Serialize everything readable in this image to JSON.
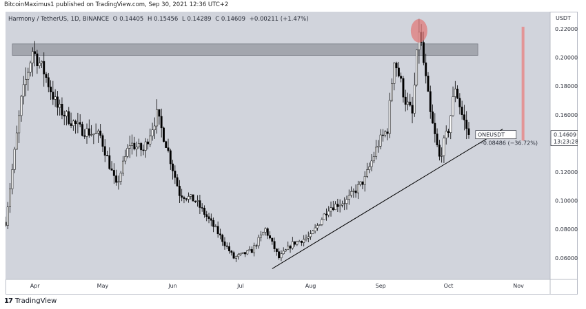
{
  "header": {
    "publisher": "BitcoinMaximus1 published on TradingView.com, Sep 30, 2021 12:36 UTC+2"
  },
  "legend": {
    "symbol": "Harmony / TetherUS, 1D, BINANCE",
    "open": "O 0.14405",
    "high": "H 0.15456",
    "low": "L 0.14289",
    "close": "C 0.14609",
    "change": "+0.00211 (+1.47%)"
  },
  "footer": {
    "logo_glyph": "17",
    "brand": "TradingView"
  },
  "colors": {
    "background": "#d1d4dc",
    "candle_up": "#ffffff",
    "candle_down": "#000000",
    "zone": "#a3a6ae",
    "highlight": "#e07b7b",
    "bar_right": "#e48e8e"
  },
  "chart_data": {
    "type": "candlestick",
    "title": "",
    "xlabel": "",
    "ylabel": "USDT",
    "y_unit_label": "USDT",
    "ylim": [
      0.045,
      0.232
    ],
    "x_months": [
      "Apr",
      "May",
      "Jun",
      "Jul",
      "Aug",
      "Sep",
      "Oct",
      "Nov"
    ],
    "x_month_days": [
      4,
      34,
      65,
      95,
      126,
      157,
      187,
      218
    ],
    "x_range_days": [
      -9,
      232
    ],
    "y_ticks": [
      "0.22000",
      "0.20000",
      "0.18000",
      "0.16000",
      "0.14000",
      "0.12000",
      "0.10000",
      "0.08000",
      "0.06000"
    ],
    "y_tick_values": [
      0.22,
      0.2,
      0.18,
      0.16,
      0.14,
      0.12,
      0.1,
      0.08,
      0.06
    ],
    "price_label": {
      "symbol": "ONEUSDT",
      "value": "0.14609",
      "countdown": "13:23:28"
    },
    "measure_label": "−0.08486 (−36.72%)",
    "resistance_zone": {
      "y_low": 0.2015,
      "y_high": 0.2095,
      "day_start": -6,
      "day_end": 200
    },
    "support_line": {
      "start": {
        "day": 109,
        "price": 0.0525
      },
      "end": {
        "day": 211,
        "price": 0.15
      }
    },
    "highlight_ellipse": {
      "day": 174,
      "price": 0.2225
    },
    "anchors": [
      {
        "day": -9,
        "price": 0.085
      },
      {
        "day": -2,
        "price": 0.17
      },
      {
        "day": 3,
        "price": 0.205
      },
      {
        "day": 8,
        "price": 0.19
      },
      {
        "day": 14,
        "price": 0.165
      },
      {
        "day": 24,
        "price": 0.15
      },
      {
        "day": 33,
        "price": 0.145
      },
      {
        "day": 40,
        "price": 0.11
      },
      {
        "day": 46,
        "price": 0.14
      },
      {
        "day": 52,
        "price": 0.135
      },
      {
        "day": 58,
        "price": 0.16
      },
      {
        "day": 62,
        "price": 0.14
      },
      {
        "day": 68,
        "price": 0.105
      },
      {
        "day": 75,
        "price": 0.1
      },
      {
        "day": 84,
        "price": 0.08
      },
      {
        "day": 92,
        "price": 0.06
      },
      {
        "day": 100,
        "price": 0.065
      },
      {
        "day": 106,
        "price": 0.08
      },
      {
        "day": 112,
        "price": 0.06
      },
      {
        "day": 118,
        "price": 0.07
      },
      {
        "day": 126,
        "price": 0.075
      },
      {
        "day": 134,
        "price": 0.095
      },
      {
        "day": 142,
        "price": 0.1
      },
      {
        "day": 150,
        "price": 0.115
      },
      {
        "day": 156,
        "price": 0.14
      },
      {
        "day": 160,
        "price": 0.15
      },
      {
        "day": 163,
        "price": 0.2
      },
      {
        "day": 168,
        "price": 0.17
      },
      {
        "day": 171,
        "price": 0.16
      },
      {
        "day": 174,
        "price": 0.22
      },
      {
        "day": 179,
        "price": 0.16
      },
      {
        "day": 183,
        "price": 0.13
      },
      {
        "day": 187,
        "price": 0.15
      },
      {
        "day": 190,
        "price": 0.18
      },
      {
        "day": 193,
        "price": 0.16
      },
      {
        "day": 196,
        "price": 0.146
      }
    ]
  }
}
